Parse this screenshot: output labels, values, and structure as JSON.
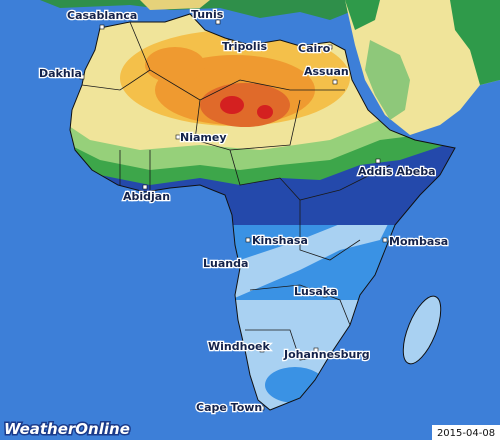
{
  "map": {
    "cities": [
      "Casablanca",
      "Tunis",
      "Dakhla",
      "Tripolis",
      "Cairo",
      "Assuan",
      "Niamey",
      "Addis Abeba",
      "Abidjan",
      "Kinshasa",
      "Mombasa",
      "Luanda",
      "Lusaka",
      "Windhoek",
      "Johannesburg",
      "Cape Town"
    ],
    "brand": "WeatherOnline",
    "date": "2015-04-08"
  }
}
